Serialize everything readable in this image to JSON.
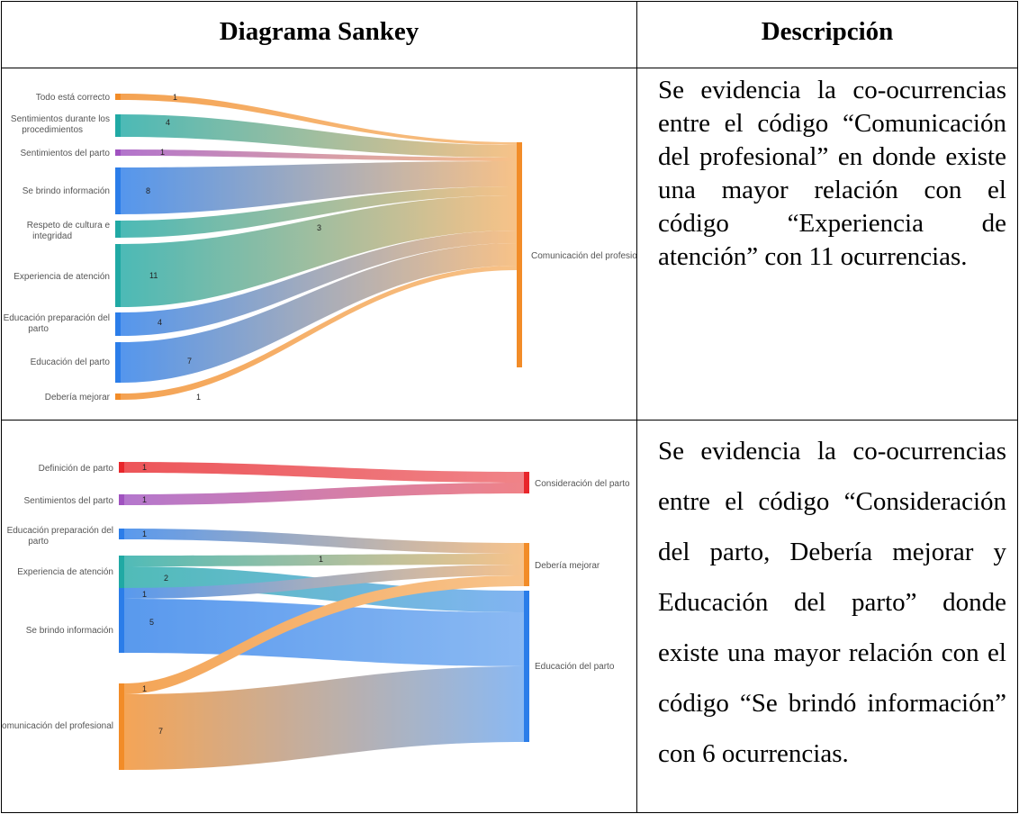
{
  "table": {
    "header_left": "Diagrama Sankey",
    "header_right": "Descripción"
  },
  "rows": [
    {
      "description": "Se evidencia la co-ocurrencias entre el código “Comunicación del profesional” en donde existe una mayor relación con el código “Experiencia de atención” con 11 ocurrencias."
    },
    {
      "description": "Se evidencia la co-ocurrencias entre el código “Consideración del parto, Debería mejorar y Educación del parto” donde existe una mayor relación con el código “Se brindó información” con 6 ocurrencias."
    }
  ],
  "sankey1": {
    "sources": [
      {
        "name": "Todo está correcto",
        "value": "1",
        "color": "#f28c28"
      },
      {
        "name": "Sentimientos durante los",
        "name2": "procedimientos",
        "value": "4",
        "color": "#20a9a4"
      },
      {
        "name": "Sentimientos del parto",
        "value": "1",
        "color": "#a052c0"
      },
      {
        "name": "Se brindo información",
        "value": "8",
        "color": "#2b7de9"
      },
      {
        "name": "Respeto de cultura e",
        "name2": "integridad",
        "value": "3",
        "color": "#20a9a4"
      },
      {
        "name": "Experiencia de atención",
        "value": "11",
        "color": "#20a9a4"
      },
      {
        "name": "Educación preparación del",
        "name2": "parto",
        "value": "4",
        "color": "#2b7de9"
      },
      {
        "name": "Educación del parto",
        "value": "7",
        "color": "#2b7de9"
      },
      {
        "name": "Debería mejorar",
        "value": "1",
        "color": "#f28c28"
      }
    ],
    "target": {
      "name": "Comunicación del profesional",
      "color": "#f28c28"
    }
  },
  "sankey2": {
    "sources": [
      {
        "name": "Definición de parto",
        "color": "#e8262b"
      },
      {
        "name": "Sentimientos del parto",
        "color": "#a052c0"
      },
      {
        "name": "Educación preparación del",
        "name2": "parto",
        "color": "#2b7de9"
      },
      {
        "name": "Experiencia de atención",
        "color": "#20a9a4"
      },
      {
        "name": "Se brindo información",
        "color": "#2b7de9"
      },
      {
        "name": "Comunicación del profesional",
        "color": "#f28c28"
      }
    ],
    "flow_values": [
      "1",
      "1",
      "1",
      "1",
      "2",
      "1",
      "5",
      "1",
      "7"
    ],
    "targets": [
      {
        "name": "Consideración del parto",
        "color": "#e8262b"
      },
      {
        "name": "Debería mejorar",
        "color": "#f28c28"
      },
      {
        "name": "Educación del parto",
        "color": "#2b7de9"
      }
    ]
  }
}
